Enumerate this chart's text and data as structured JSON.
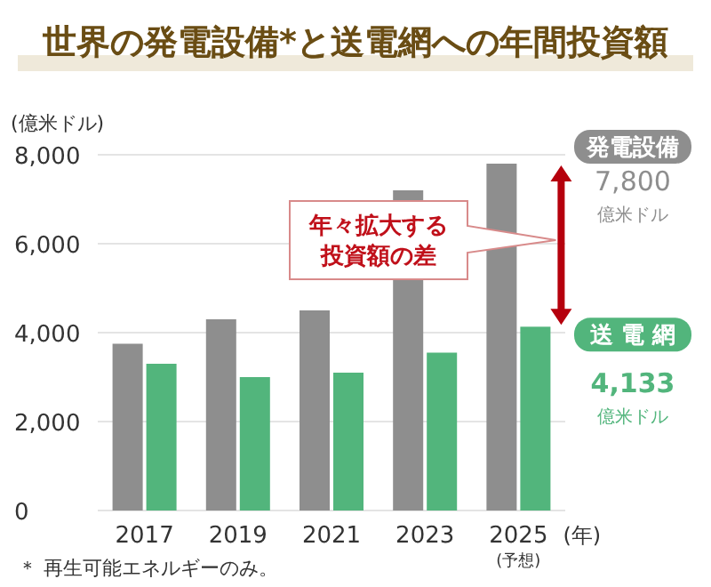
{
  "chart_data": {
    "type": "bar",
    "title": "世界の発電設備*と送電網への年間投資額",
    "ylabel": "(億米ドル)",
    "xlabel": "(年)",
    "categories": [
      "2017",
      "2019",
      "2021",
      "2023",
      "2025"
    ],
    "series": [
      {
        "name": "発電設備",
        "color": "#8e8e8e",
        "values": [
          3750,
          4300,
          4500,
          7200,
          7800
        ]
      },
      {
        "name": "送 電 網",
        "color": "#52b57c",
        "values": [
          3300,
          3000,
          3100,
          3550,
          4133
        ]
      }
    ],
    "ylim": [
      0,
      8000
    ],
    "yticks": [
      {
        "value": 0,
        "label": "0"
      },
      {
        "value": 2000,
        "label": "2,000"
      },
      {
        "value": 4000,
        "label": "4,000"
      },
      {
        "value": 6000,
        "label": "6,000"
      },
      {
        "value": 8000,
        "label": "8,000"
      }
    ],
    "grid": "y",
    "annotations": [
      "7,800",
      "億米ドル",
      "4,133",
      "億米ドル",
      "(予想)",
      "年々拡大する投資額の差",
      "＊ 再生可能エネルギーのみ。"
    ]
  }
}
